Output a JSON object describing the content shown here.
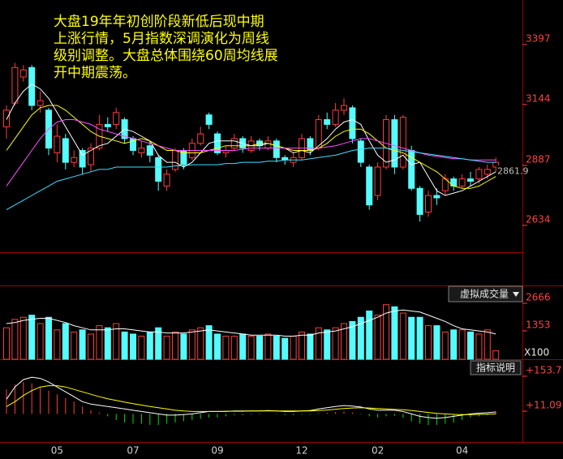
{
  "chart_data": [
    {
      "type": "candlestick",
      "annotation": [
        "大盘19年年初创阶段新低后现中期",
        "上涨行情，5月指数深调演化为周线",
        "级别调整。大盘总体围绕60周均线展",
        "开中期震荡。"
      ],
      "categories": [
        null,
        null,
        null,
        null,
        null,
        null,
        "05",
        null,
        null,
        null,
        null,
        null,
        null,
        null,
        null,
        "07",
        null,
        null,
        null,
        null,
        null,
        null,
        null,
        null,
        null,
        "09",
        null,
        null,
        null,
        null,
        null,
        null,
        null,
        null,
        null,
        "12",
        null,
        null,
        null,
        null,
        null,
        null,
        null,
        null,
        "02",
        null,
        null,
        null,
        null,
        null,
        null,
        null,
        null,
        null,
        "04",
        null,
        null,
        null,
        null
      ],
      "open": [
        3050,
        3150,
        3260,
        3300,
        3140,
        3120,
        2940,
        3000,
        2900,
        2950,
        2890,
        2960,
        3060,
        3060,
        3080,
        3000,
        2940,
        2970,
        2920,
        2800,
        2870,
        2950,
        2920,
        2980,
        3100,
        3020,
        2940,
        2960,
        3000,
        2950,
        2990,
        2960,
        2990,
        2920,
        2900,
        2920,
        3000,
        2960,
        3080,
        3060,
        3120,
        3130,
        2990,
        2880,
        2760,
        2880,
        3080,
        2880,
        2950,
        2790,
        2690,
        2760,
        2780,
        2830,
        2800,
        2830,
        2830,
        2850,
        2880
      ],
      "high": [
        3140,
        3320,
        3310,
        3310,
        3200,
        3130,
        3060,
        3020,
        2950,
        2960,
        2980,
        3100,
        3090,
        3130,
        3090,
        3010,
        2990,
        2990,
        2930,
        2870,
        2960,
        2960,
        3000,
        3050,
        3110,
        3030,
        2970,
        3020,
        3010,
        3010,
        3000,
        3010,
        3000,
        2930,
        2940,
        3020,
        3010,
        3100,
        3110,
        3150,
        3170,
        3140,
        3000,
        2890,
        2900,
        3100,
        3100,
        3100,
        2970,
        2800,
        2780,
        2790,
        2850,
        2840,
        2850,
        2860,
        2880,
        2890,
        2920
      ],
      "low": [
        3000,
        3140,
        3240,
        3120,
        3110,
        2930,
        2900,
        2870,
        2880,
        2850,
        2860,
        2950,
        3030,
        3040,
        2980,
        2930,
        2920,
        2900,
        2780,
        2780,
        2860,
        2870,
        2910,
        2970,
        3040,
        2930,
        2920,
        2950,
        2940,
        2940,
        2950,
        2950,
        2900,
        2890,
        2880,
        2910,
        2930,
        2950,
        3040,
        3050,
        3100,
        2980,
        2880,
        2700,
        2740,
        2870,
        2850,
        2870,
        2780,
        2650,
        2670,
        2720,
        2760,
        2780,
        2790,
        2800,
        2810,
        2830,
        2860
      ],
      "close": [
        3120,
        3300,
        3290,
        3140,
        3160,
        2960,
        3010,
        2900,
        2920,
        2880,
        2960,
        3060,
        3050,
        3110,
        3000,
        2950,
        2960,
        2930,
        2820,
        2850,
        2950,
        2890,
        2980,
        3020,
        3060,
        2940,
        2950,
        3000,
        2960,
        2990,
        2970,
        2990,
        2920,
        2910,
        2920,
        3000,
        2950,
        3080,
        3060,
        3120,
        3140,
        3000,
        2900,
        2720,
        2880,
        3080,
        2880,
        3090,
        2790,
        2680,
        2760,
        2750,
        2830,
        2800,
        2830,
        2820,
        2870,
        2870,
        2900
      ],
      "up_color": "#ff3c3c",
      "down_color": "#54fcfc",
      "lines": [
        {
          "color": "#ffffff",
          "values": [
            3080,
            3150,
            3200,
            3230,
            3210,
            3170,
            3110,
            3050,
            2990,
            2930,
            2950,
            2970,
            2980,
            3010,
            3040,
            3030,
            3010,
            2990,
            2930,
            2900,
            2900,
            2880,
            2900,
            2940,
            2980,
            2990,
            2990,
            2990,
            2980,
            2970,
            2970,
            2980,
            2970,
            2960,
            2940,
            2950,
            2940,
            2970,
            3000,
            3040,
            3070,
            3080,
            3060,
            2990,
            2930,
            2900,
            2910,
            2930,
            2890,
            2900,
            2840,
            2780,
            2760,
            2770,
            2780,
            2800,
            2820,
            2840,
            2860
          ]
        },
        {
          "color": "#ffff00",
          "values": [
            2950,
            3000,
            3050,
            3100,
            3130,
            3140,
            3140,
            3120,
            3090,
            3060,
            3030,
            3010,
            3000,
            2990,
            2980,
            2990,
            3000,
            2990,
            2970,
            2950,
            2950,
            2940,
            2940,
            2940,
            2950,
            2960,
            2970,
            2970,
            2970,
            2970,
            2980,
            2980,
            2970,
            2960,
            2950,
            2950,
            2950,
            2960,
            2980,
            3010,
            3030,
            3040,
            3040,
            3020,
            2990,
            2960,
            2950,
            2940,
            2920,
            2900,
            2880,
            2860,
            2830,
            2800,
            2790,
            2790,
            2800,
            2820,
            2840
          ]
        },
        {
          "color": "#ff50ff",
          "values": [
            2800,
            2850,
            2900,
            2950,
            3000,
            3040,
            3070,
            3080,
            3080,
            3070,
            3060,
            3040,
            3030,
            3020,
            3010,
            3000,
            2990,
            2980,
            2970,
            2960,
            2950,
            2950,
            2950,
            2950,
            2950,
            2950,
            2950,
            2950,
            2955,
            2960,
            2960,
            2960,
            2960,
            2960,
            2960,
            2960,
            2960,
            2960,
            2965,
            2970,
            2980,
            2990,
            3000,
            3000,
            2990,
            2980,
            2970,
            2960,
            2950,
            2940,
            2930,
            2925,
            2920,
            2915,
            2915,
            2910,
            2910,
            2910,
            2910
          ]
        },
        {
          "color": "#40e0ff",
          "values": [
            2700,
            2720,
            2740,
            2760,
            2780,
            2800,
            2820,
            2830,
            2840,
            2850,
            2860,
            2870,
            2870,
            2880,
            2880,
            2880,
            2880,
            2880,
            2880,
            2880,
            2885,
            2885,
            2890,
            2890,
            2890,
            2890,
            2895,
            2895,
            2900,
            2900,
            2900,
            2905,
            2905,
            2910,
            2910,
            2910,
            2915,
            2920,
            2925,
            2930,
            2940,
            2950,
            2955,
            2960,
            2960,
            2960,
            2955,
            2950,
            2945,
            2940,
            2935,
            2930,
            2925,
            2920,
            2915,
            2910,
            2905,
            2900,
            2900
          ]
        }
      ],
      "last_price": 2861.9,
      "ylim": [
        2524,
        3585
      ],
      "yticks": [
        2634,
        2887,
        3144,
        3397
      ]
    },
    {
      "type": "volume",
      "button": "虚拟成交量",
      "unit_label": "X100",
      "values": [
        1500,
        1900,
        2000,
        2100,
        1700,
        2000,
        1400,
        1700,
        1300,
        1400,
        1200,
        1600,
        1500,
        1700,
        1300,
        1200,
        1100,
        1300,
        1500,
        1100,
        1300,
        1200,
        1400,
        1500,
        1600,
        1200,
        1100,
        1100,
        1200,
        1100,
        1100,
        1200,
        1100,
        1000,
        1100,
        1300,
        1200,
        1500,
        1400,
        1500,
        1700,
        1800,
        2000,
        2300,
        2100,
        2600,
        2500,
        2200,
        2000,
        2000,
        1600,
        1600,
        1300,
        1400,
        1400,
        1300,
        1200,
        1400,
        400
      ],
      "lines": [
        {
          "color": "#ffffff",
          "values": [
            1700,
            1750,
            1850,
            1900,
            1950,
            1950,
            1850,
            1750,
            1600,
            1500,
            1400,
            1400,
            1400,
            1450,
            1450,
            1400,
            1350,
            1300,
            1300,
            1250,
            1250,
            1250,
            1300,
            1350,
            1400,
            1350,
            1300,
            1250,
            1200,
            1150,
            1150,
            1150,
            1150,
            1100,
            1100,
            1150,
            1150,
            1250,
            1300,
            1350,
            1450,
            1550,
            1700,
            1850,
            2000,
            2200,
            2300,
            2350,
            2300,
            2250,
            2100,
            1950,
            1800,
            1600,
            1450,
            1400,
            1350,
            1300,
            1200
          ]
        }
      ],
      "ylim": [
        0,
        3400
      ],
      "yticks": [
        1353,
        2666
      ]
    },
    {
      "type": "macd",
      "button": "指标说明",
      "up_color": "#ff3c3c",
      "down_color": "#00e000",
      "values": [
        100,
        120,
        130,
        125,
        110,
        95,
        80,
        65,
        50,
        30,
        15,
        5,
        -10,
        -25,
        -35,
        -40,
        -40,
        -45,
        -45,
        -40,
        -35,
        -30,
        -25,
        -20,
        -15,
        -15,
        -10,
        -5,
        -5,
        -3,
        -2,
        0,
        -2,
        -5,
        -5,
        -3,
        -2,
        3,
        5,
        8,
        10,
        6,
        -2,
        -10,
        -15,
        -10,
        -8,
        -15,
        -30,
        -40,
        -45,
        -45,
        -40,
        -35,
        -25,
        -15,
        -10,
        -5,
        8
      ],
      "lines": [
        {
          "color": "#ffffff",
          "values": [
            60,
            110,
            140,
            150,
            145,
            130,
            110,
            90,
            70,
            50,
            40,
            35,
            30,
            25,
            20,
            15,
            10,
            5,
            0,
            -5,
            -5,
            -3,
            0,
            5,
            10,
            10,
            10,
            12,
            12,
            12,
            12,
            14,
            12,
            10,
            10,
            12,
            14,
            20,
            25,
            30,
            34,
            32,
            28,
            20,
            15,
            15,
            15,
            10,
            0,
            -10,
            -15,
            -18,
            -15,
            -10,
            -5,
            0,
            3,
            5,
            8
          ]
        },
        {
          "color": "#ffff00",
          "values": [
            30,
            50,
            75,
            95,
            110,
            115,
            115,
            110,
            100,
            90,
            80,
            70,
            62,
            55,
            48,
            42,
            36,
            30,
            25,
            20,
            15,
            12,
            10,
            10,
            10,
            10,
            11,
            11,
            11,
            12,
            12,
            12,
            12,
            12,
            12,
            12,
            12,
            14,
            16,
            19,
            22,
            24,
            25,
            24,
            22,
            20,
            18,
            17,
            14,
            10,
            6,
            2,
            0,
            -2,
            -3,
            -3,
            -2,
            -1,
            0
          ]
        }
      ],
      "ylim": [
        -98,
        180
      ],
      "yticks": [
        {
          "value": 11.09,
          "label": "+11.09"
        },
        {
          "value": 153.7,
          "label": "+153.7"
        }
      ]
    }
  ]
}
